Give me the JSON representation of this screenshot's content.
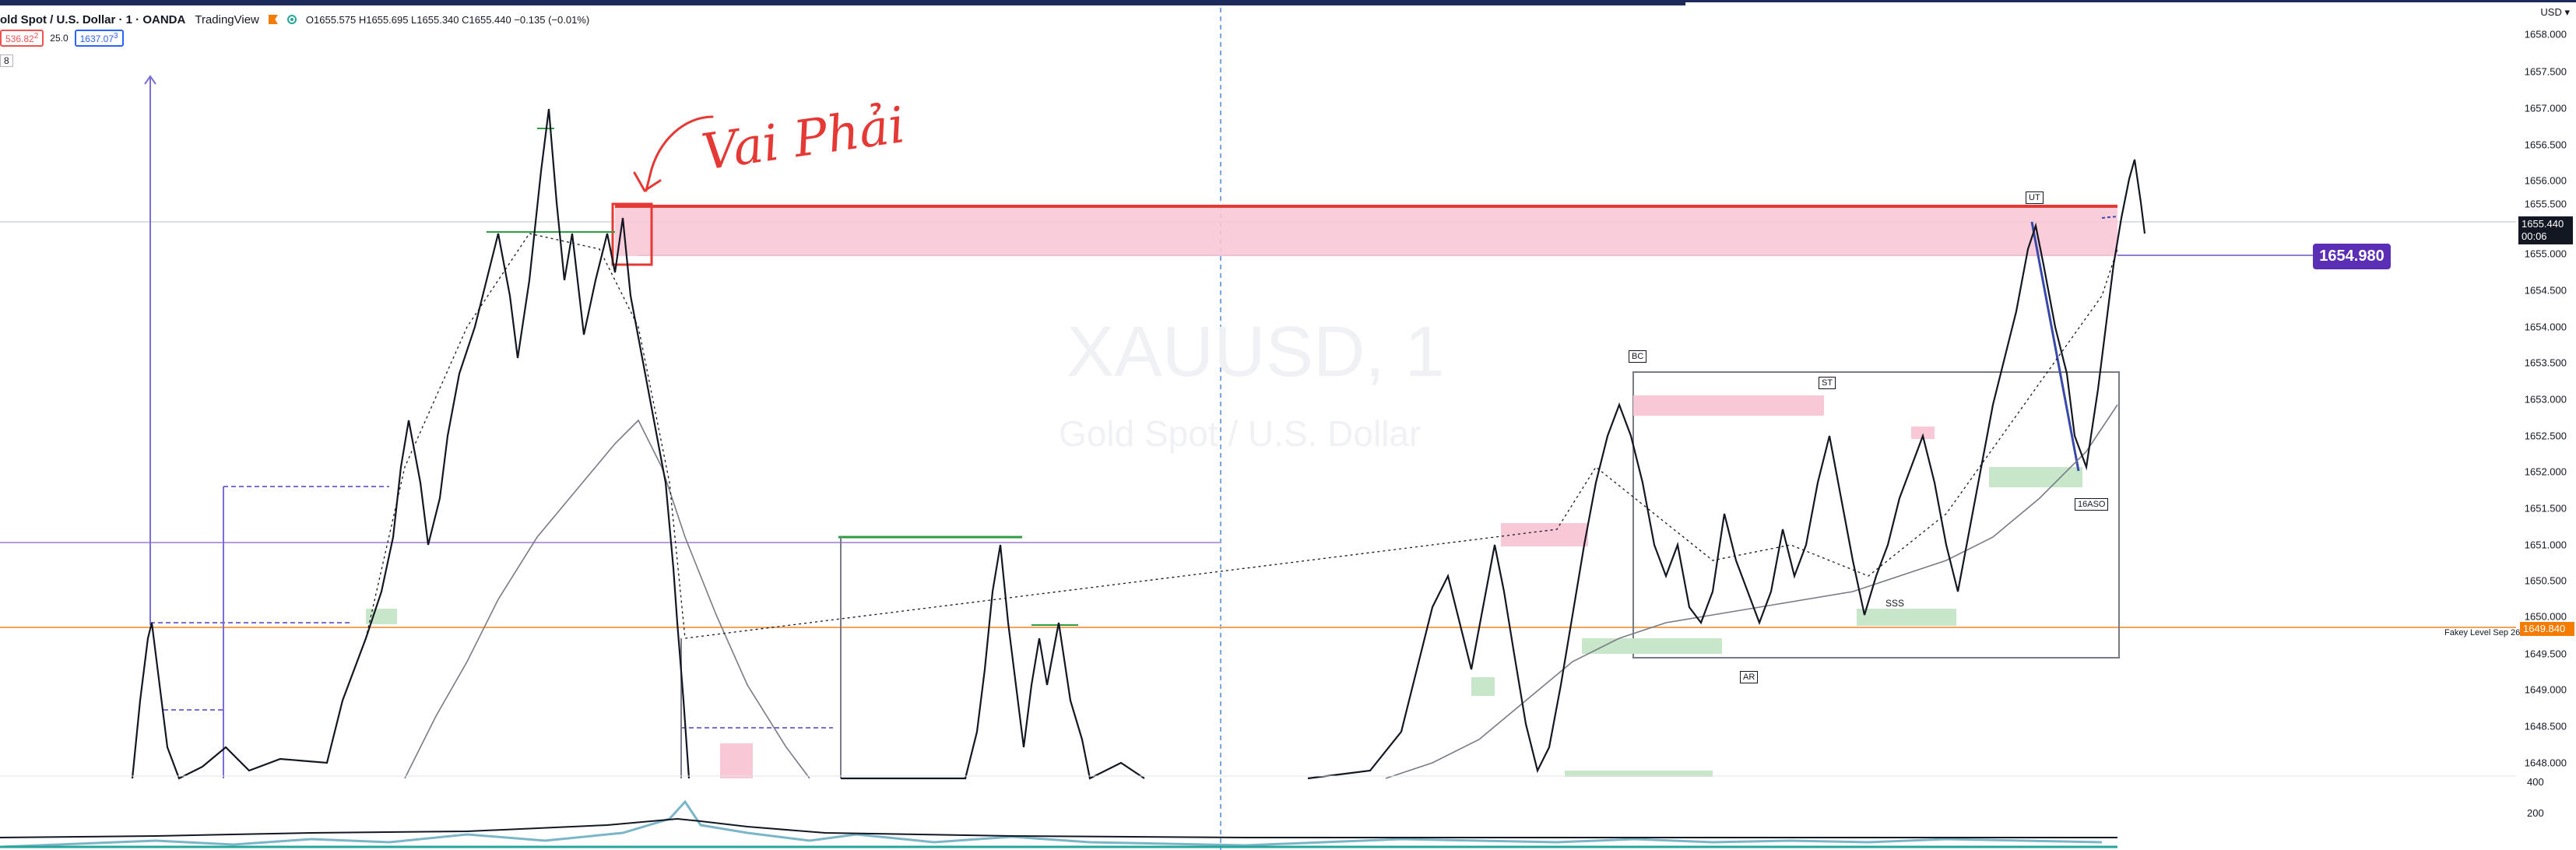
{
  "legend": {
    "symbol": "old Spot / U.S. Dollar · 1 · OANDA",
    "source": "TradingView",
    "ohlc": "O1655.575 H1655.695 L1655.340 C1655.440 −0.135 (−0.01%)"
  },
  "indicators": {
    "pill_red": "536.82",
    "pill_red_sub": "2",
    "middle_value": "25.0",
    "pill_blue": "1637.07",
    "pill_blue_sub": "3",
    "count_label": "8"
  },
  "watermark": {
    "ticker": "XAUUSD, 1",
    "name": "Gold Spot / U.S. Dollar"
  },
  "annotations": {
    "handwriting": "Vai Phải",
    "tag_bc": "BC",
    "tag_st": "ST",
    "tag_ar": "AR",
    "tag_sss": "SSS",
    "tag_ut": "UT",
    "tag_lpsd": "16ASO"
  },
  "price_axis": {
    "mode": "USD",
    "ticks": [
      "1658.000",
      "1657.500",
      "1657.000",
      "1656.500",
      "1656.000",
      "1655.500",
      "1655.000",
      "1654.500",
      "1654.000",
      "1653.500",
      "1653.000",
      "1652.500",
      "1652.000",
      "1651.500",
      "1651.000",
      "1650.500",
      "1650.000",
      "1649.500",
      "1649.000",
      "1648.500",
      "1648.000"
    ],
    "current_price": "1655.440",
    "countdown": "00:06",
    "alert_price": "1654.980",
    "fakey_price": "1649.840",
    "fakey_label": "Fakey Level Sep 26"
  },
  "volume_axis": {
    "top": "400",
    "mid": "200"
  },
  "colors": {
    "accent_purple": "#5b2fb5",
    "zone_red": "#f8c8d6",
    "zone_green": "#c8e6c9",
    "fakey_orange": "#f57c00",
    "box_red": "#e53935"
  }
}
